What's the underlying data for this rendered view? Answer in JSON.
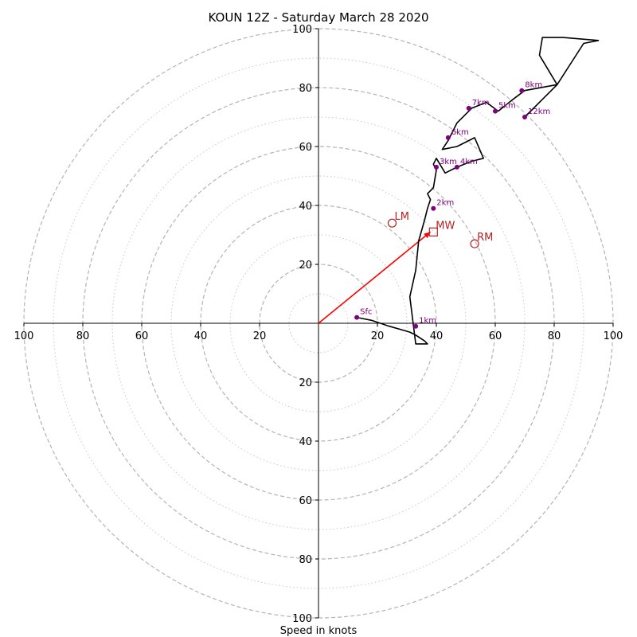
{
  "chart_data": {
    "type": "hodograph",
    "title": "KOUN 12Z - Saturday March 28 2020",
    "xlabel": "Speed in knots",
    "range_max": 100,
    "ring_major": [
      20,
      40,
      60,
      80,
      100
    ],
    "ring_minor": [
      10,
      30,
      50,
      70,
      90
    ],
    "ticks": {
      "x_left": [
        "100",
        "80",
        "60",
        "40",
        "20"
      ],
      "x_right": [
        "20",
        "40",
        "60",
        "80",
        "100"
      ],
      "y_top": [
        "20",
        "40",
        "60",
        "80",
        "100"
      ],
      "y_bottom": [
        "20",
        "40",
        "60",
        "80",
        "100"
      ]
    },
    "tick_values": [
      20,
      40,
      60,
      80,
      100
    ],
    "trace": {
      "u": [
        13,
        18,
        24,
        31,
        33,
        36,
        37,
        33,
        31,
        33,
        34,
        36,
        37,
        38,
        37,
        39,
        40,
        39,
        40,
        43,
        47,
        52,
        56,
        53,
        51,
        47,
        42,
        44,
        47,
        52,
        57,
        61,
        66,
        70,
        81,
        75,
        76,
        83,
        95,
        90,
        81,
        76,
        70
      ],
      "v": [
        2,
        1,
        -1,
        -3,
        -4,
        -6,
        -7,
        -7,
        9,
        18,
        28,
        35,
        39,
        42,
        44,
        46,
        52,
        54,
        56,
        51,
        53,
        55,
        56,
        63,
        62,
        60,
        59,
        62,
        68,
        73,
        75,
        72,
        76,
        79,
        81,
        91,
        97,
        97,
        96,
        95,
        81,
        76,
        70
      ],
      "color": "#000000"
    },
    "height_points": [
      {
        "label": "Sfc",
        "u": 13,
        "v": 2
      },
      {
        "label": "1km",
        "u": 33,
        "v": -1
      },
      {
        "label": "2km",
        "u": 39,
        "v": 39
      },
      {
        "label": "3km",
        "u": 40,
        "v": 53
      },
      {
        "label": "4km",
        "u": 47,
        "v": 53
      },
      {
        "label": "5km",
        "u": 60,
        "v": 72
      },
      {
        "label": "6km",
        "u": 44,
        "v": 63
      },
      {
        "label": "7km",
        "u": 51,
        "v": 73
      },
      {
        "label": "8km",
        "u": 69,
        "v": 79
      },
      {
        "label": "12km",
        "u": 70,
        "v": 70
      }
    ],
    "height_point_color": "#800080",
    "motions": [
      {
        "label": "MW",
        "u": 39,
        "v": 31,
        "marker": "square"
      },
      {
        "label": "LM",
        "u": 25,
        "v": 34,
        "marker": "circle"
      },
      {
        "label": "RM",
        "u": 53,
        "v": 27,
        "marker": "circle"
      }
    ],
    "motion_color": "#b22222",
    "mean_wind_vector": {
      "u": 38,
      "v": 31,
      "color": "#ff0000"
    }
  }
}
